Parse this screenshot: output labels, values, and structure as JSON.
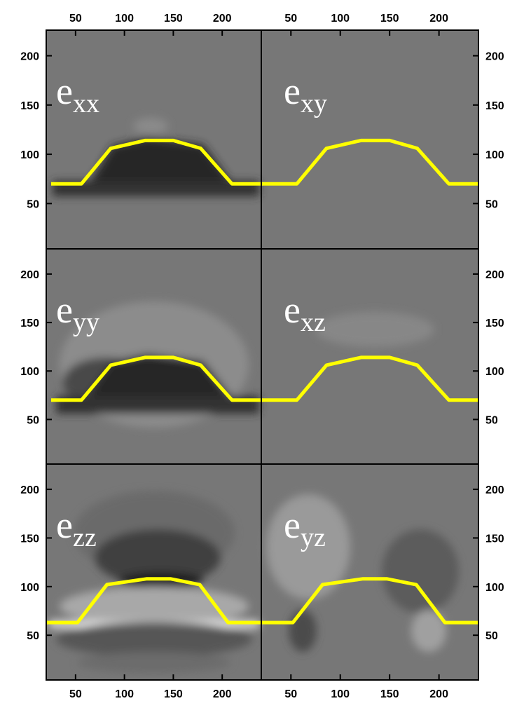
{
  "chart_data": [
    {
      "type": "line",
      "label": {
        "text": "e",
        "sub": "xx"
      },
      "x": [
        25,
        56,
        86,
        121,
        150,
        178,
        210,
        240
      ],
      "series": [
        {
          "color": "#ffff00",
          "values": [
            70,
            70,
            106,
            114,
            114,
            106,
            70,
            70
          ]
        }
      ],
      "xlim": [
        20,
        240
      ],
      "ylim": [
        4,
        226
      ],
      "xticks": [
        50,
        100,
        150,
        200
      ],
      "yticks": [
        50,
        100,
        150,
        200
      ]
    },
    {
      "type": "line",
      "label": {
        "text": "e",
        "sub": "xy"
      },
      "x": [
        20,
        56,
        86,
        121,
        150,
        178,
        210,
        240
      ],
      "series": [
        {
          "color": "#ffff00",
          "values": [
            70,
            70,
            106,
            114,
            114,
            106,
            70,
            70
          ]
        }
      ],
      "xlim": [
        20,
        240
      ],
      "ylim": [
        4,
        226
      ],
      "xticks": [
        50,
        100,
        150,
        200
      ],
      "yticks": [
        50,
        100,
        150,
        200
      ]
    },
    {
      "type": "line",
      "label": {
        "text": "e",
        "sub": "yy"
      },
      "x": [
        25,
        56,
        86,
        121,
        150,
        178,
        210,
        240
      ],
      "series": [
        {
          "color": "#ffff00",
          "values": [
            70,
            70,
            106,
            114,
            114,
            106,
            70,
            70
          ]
        }
      ],
      "xlim": [
        20,
        240
      ],
      "ylim": [
        4,
        226
      ],
      "yticks": [
        50,
        100,
        150,
        200
      ]
    },
    {
      "type": "line",
      "label": {
        "text": "e",
        "sub": "xz"
      },
      "x": [
        20,
        56,
        86,
        121,
        150,
        178,
        210,
        240
      ],
      "series": [
        {
          "color": "#ffff00",
          "values": [
            70,
            70,
            106,
            114,
            114,
            106,
            70,
            70
          ]
        }
      ],
      "xlim": [
        20,
        240
      ],
      "ylim": [
        4,
        226
      ],
      "yticks": [
        50,
        100,
        150,
        200
      ]
    },
    {
      "type": "line",
      "label": {
        "text": "e",
        "sub": "zz"
      },
      "x": [
        20,
        52,
        82,
        123,
        147,
        177,
        206,
        240
      ],
      "series": [
        {
          "color": "#ffff00",
          "values": [
            63,
            63,
            102,
            108,
            108,
            102,
            63,
            63
          ]
        }
      ],
      "xlim": [
        20,
        240
      ],
      "ylim": [
        4,
        226
      ],
      "xticks": [
        50,
        100,
        150,
        200
      ],
      "yticks": [
        50,
        100,
        150,
        200
      ]
    },
    {
      "type": "line",
      "label": {
        "text": "e",
        "sub": "yz"
      },
      "x": [
        20,
        52,
        82,
        123,
        147,
        177,
        206,
        240
      ],
      "series": [
        {
          "color": "#ffff00",
          "values": [
            63,
            63,
            102,
            108,
            108,
            102,
            63,
            63
          ]
        }
      ],
      "xlim": [
        20,
        240
      ],
      "ylim": [
        4,
        226
      ],
      "xticks": [
        50,
        100,
        150,
        200
      ],
      "yticks": [
        50,
        100,
        150,
        200
      ]
    }
  ]
}
